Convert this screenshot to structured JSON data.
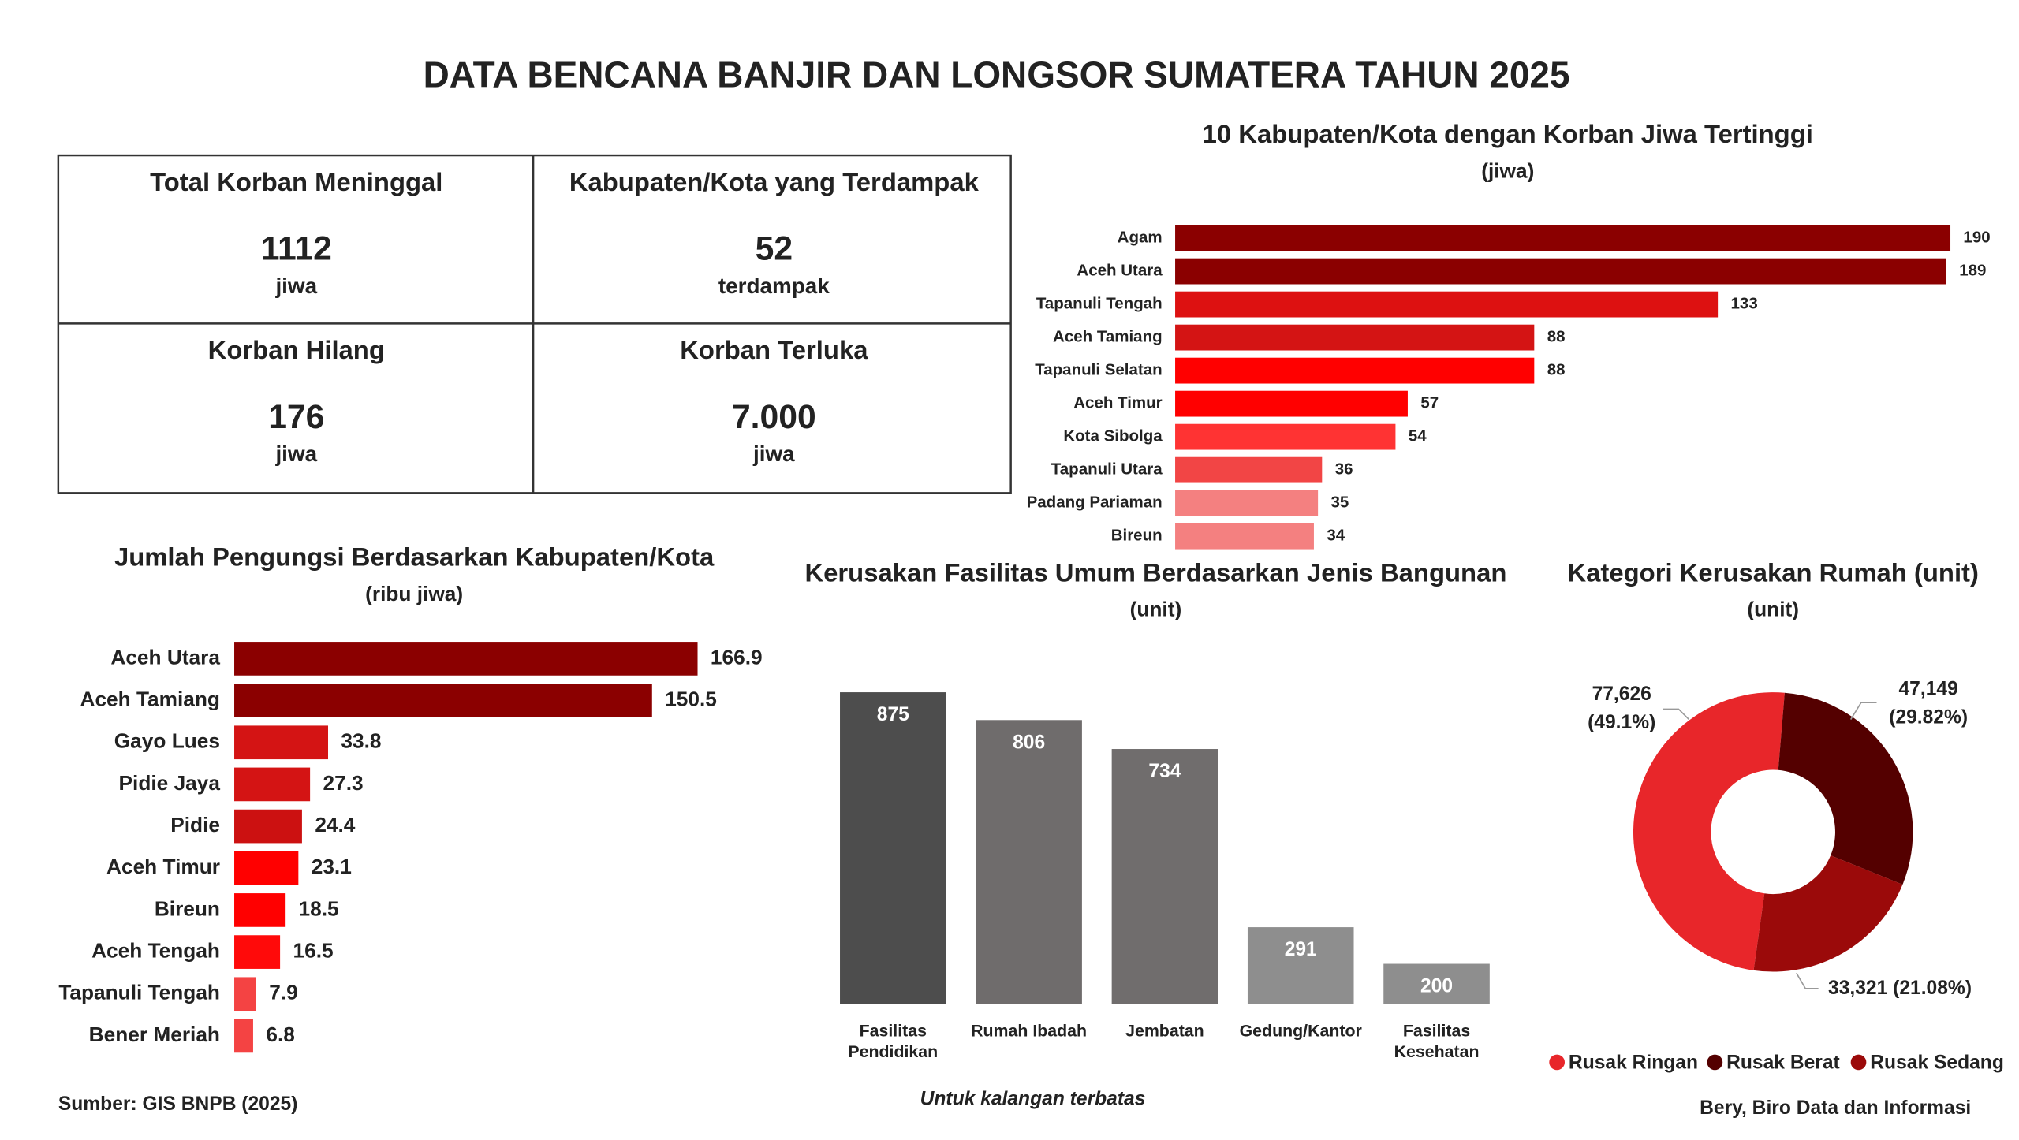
{
  "title": "DATA BENCANA BANJIR DAN LONGSOR SUMATERA TAHUN 2025",
  "stats": [
    {
      "title": "Total Korban Meninggal",
      "value": "1112",
      "unit": "jiwa"
    },
    {
      "title": "Kabupaten/Kota yang Terdampak",
      "value": "52",
      "unit": "terdampak"
    },
    {
      "title": "Korban Hilang",
      "value": "176",
      "unit": "jiwa"
    },
    {
      "title": "Korban Terluka",
      "value": "7.000",
      "unit": "jiwa"
    }
  ],
  "chart_data": [
    {
      "type": "hbar",
      "title": "10 Kabupaten/Kota dengan Korban Jiwa Tertinggi",
      "subtitle": "(jiwa)",
      "categories": [
        "Agam",
        "Aceh Utara",
        "Tapanuli Tengah",
        "Aceh Tamiang",
        "Tapanuli Selatan",
        "Aceh Timur",
        "Kota Sibolga",
        "Tapanuli Utara",
        "Padang Pariaman",
        "Bireun"
      ],
      "values": [
        190,
        189,
        133,
        88,
        88,
        57,
        54,
        36,
        35,
        34
      ],
      "colors": [
        "#8b0000",
        "#8b0000",
        "#dd1111",
        "#d41414",
        "#ff0000",
        "#ff0000",
        "#ff3333",
        "#f24545",
        "#f48080",
        "#f48080"
      ],
      "xlim": [
        0,
        190
      ]
    },
    {
      "type": "hbar",
      "title": "Jumlah Pengungsi Berdasarkan Kabupaten/Kota",
      "subtitle": "(ribu jiwa)",
      "categories": [
        "Aceh Utara",
        "Aceh Tamiang",
        "Gayo Lues",
        "Pidie Jaya",
        "Pidie",
        "Aceh Timur",
        "Bireun",
        "Aceh Tengah",
        "Tapanuli Tengah",
        "Bener Meriah"
      ],
      "values": [
        166.9,
        150.5,
        33.8,
        27.3,
        24.4,
        23.1,
        18.5,
        16.5,
        7.9,
        6.8
      ],
      "colors": [
        "#8b0000",
        "#8b0000",
        "#d41414",
        "#d41414",
        "#cc1111",
        "#ff0000",
        "#ff0000",
        "#ff0a0a",
        "#f44343",
        "#f44343"
      ],
      "xlim": [
        0,
        166.9
      ]
    },
    {
      "type": "bar",
      "title": "Kerusakan Fasilitas Umum Berdasarkan Jenis Bangunan",
      "subtitle": "(unit)",
      "categories": [
        "Fasilitas Pendidikan",
        "Rumah Ibadah",
        "Jembatan",
        "Gedung/Kantor",
        "Fasilitas Kesehatan"
      ],
      "values": [
        875,
        806,
        734,
        291,
        200
      ],
      "colors": [
        "#4d4d4d",
        "#6f6c6c",
        "#706d6d",
        "#8e8e8e",
        "#8e8e8e"
      ],
      "ylim": [
        100,
        875
      ]
    },
    {
      "type": "donut",
      "title": "Kategori Kerusakan Rumah (unit)",
      "subtitle": "(unit)",
      "series": [
        {
          "name": "Rusak Ringan",
          "color": "#e8262a",
          "value": 77626,
          "value_label": "77,626",
          "percent": 49.1,
          "percent_label": "(49.1%)"
        },
        {
          "name": "Rusak Berat",
          "color": "#540000",
          "value": 47149,
          "value_label": "47,149",
          "percent": 29.82,
          "percent_label": "(29.82%)"
        },
        {
          "name": "Rusak Sedang",
          "color": "#9b0a0a",
          "value": 33321,
          "value_label": "33,321",
          "percent": 21.08,
          "percent_label": "(21.08%)"
        }
      ]
    }
  ],
  "source": "Sumber: GIS BNPB (2025)",
  "note": "Untuk kalangan terbatas",
  "credit": "Bery, Biro Data dan Informasi"
}
